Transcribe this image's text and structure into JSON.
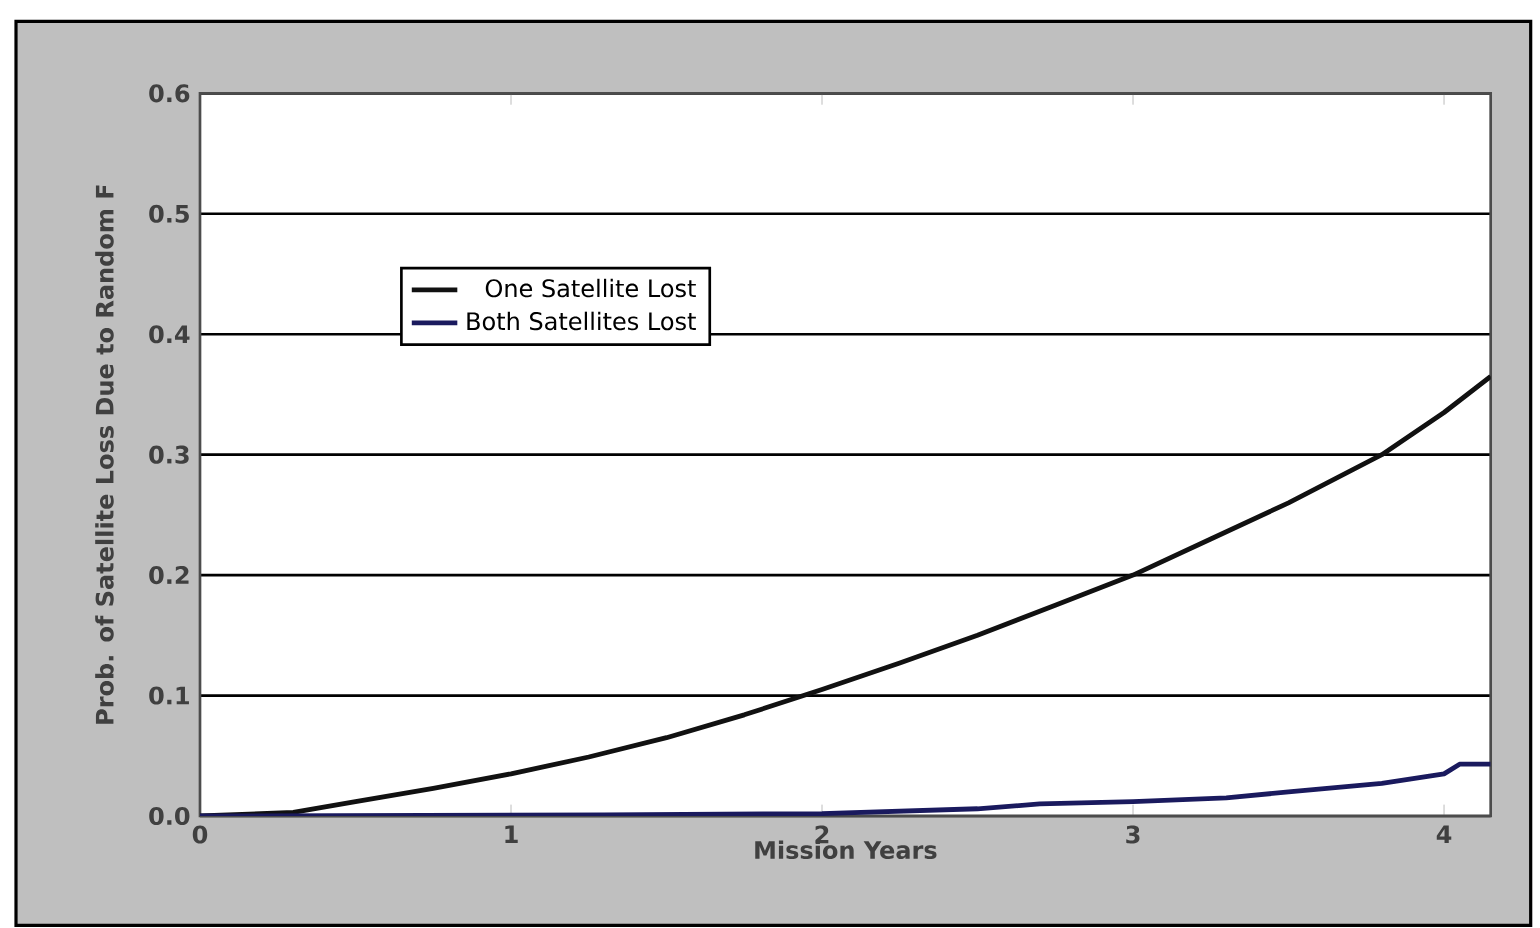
{
  "chart_data": {
    "type": "line",
    "xlabel": "Mission Years",
    "ylabel": "Prob. of Satellite Loss Due to Random F",
    "xlim": [
      0,
      4.15
    ],
    "ylim": [
      0,
      0.6
    ],
    "xticks": [
      0,
      1,
      2,
      3,
      4
    ],
    "yticks": [
      {
        "value": 0,
        "label": "0.0"
      },
      0.1,
      0.2,
      0.3,
      0.4,
      0.5,
      0.6
    ],
    "grid": "y",
    "legend": "top left",
    "marker": "none",
    "line_style": "solid",
    "series": [
      {
        "name": "One Satellite Lost",
        "color": "#111111",
        "x": [
          0,
          0.3,
          0.5,
          0.75,
          1,
          1.25,
          1.5,
          1.75,
          2,
          2.25,
          2.5,
          2.75,
          3,
          3.25,
          3.5,
          3.8,
          4,
          4.15
        ],
        "values": [
          0,
          0.003,
          0.012,
          0.023,
          0.035,
          0.049,
          0.065,
          0.084,
          0.105,
          0.127,
          0.15,
          0.175,
          0.2,
          0.23,
          0.26,
          0.3,
          0.335,
          0.365
        ]
      },
      {
        "name": "Both Satellites Lost",
        "color": "#1a1a5e",
        "x": [
          0,
          1.3,
          2,
          2.5,
          2.7,
          3,
          3.3,
          3.5,
          3.8,
          4,
          4.05,
          4.15
        ],
        "values": [
          0,
          0.001,
          0.002,
          0.006,
          0.01,
          0.012,
          0.015,
          0.02,
          0.027,
          0.035,
          0.043,
          0.043
        ]
      }
    ]
  }
}
